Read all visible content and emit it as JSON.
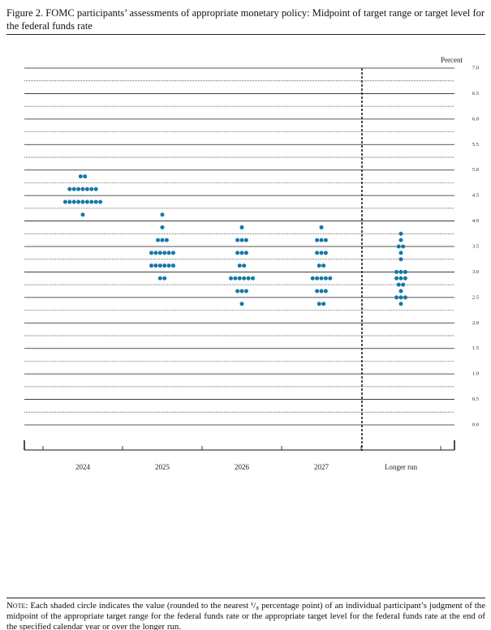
{
  "title": "Figure 2. FOMC participants’ assessments of appropriate monetary policy: Midpoint of target range or target level for the federal funds rate",
  "note_label": "Note:",
  "note": "Each shaded circle indicates the value (rounded to the nearest ¹/₈ percentage point) of an individual participant’s judgment of the midpoint of the appropriate target range for the federal funds rate or the appropriate target level for the federal funds rate at the end of the specified calendar year or over the longer run.",
  "chart_data": {
    "type": "dot",
    "y_label": "Percent",
    "color": "#1478a8",
    "categories": [
      "2024",
      "2025",
      "2026",
      "2027",
      "Longer run"
    ],
    "values": [
      [
        4.875,
        4.875,
        4.625,
        4.625,
        4.625,
        4.625,
        4.625,
        4.625,
        4.625,
        4.375,
        4.375,
        4.375,
        4.375,
        4.375,
        4.375,
        4.375,
        4.375,
        4.375,
        4.125
      ],
      [
        4.125,
        3.875,
        3.625,
        3.625,
        3.625,
        3.375,
        3.375,
        3.375,
        3.375,
        3.375,
        3.375,
        3.125,
        3.125,
        3.125,
        3.125,
        3.125,
        3.125,
        2.875,
        2.875
      ],
      [
        3.875,
        3.625,
        3.625,
        3.625,
        3.375,
        3.375,
        3.375,
        3.125,
        3.125,
        2.875,
        2.875,
        2.875,
        2.875,
        2.875,
        2.875,
        2.625,
        2.625,
        2.625,
        2.375
      ],
      [
        3.875,
        3.625,
        3.625,
        3.625,
        3.375,
        3.375,
        3.375,
        3.125,
        3.125,
        2.875,
        2.875,
        2.875,
        2.875,
        2.875,
        2.625,
        2.625,
        2.625,
        2.375,
        2.375
      ],
      [
        3.75,
        3.625,
        3.5,
        3.5,
        3.375,
        3.25,
        3.0,
        3.0,
        3.0,
        2.875,
        2.875,
        2.875,
        2.75,
        2.75,
        2.625,
        2.5,
        2.5,
        2.5,
        2.375
      ]
    ],
    "ylim": [
      0,
      7
    ],
    "yticks": [
      {
        "value": 0,
        "label": "0.0"
      },
      0.5,
      {
        "value": 1,
        "label": "1.0"
      },
      1.5,
      {
        "value": 2,
        "label": "2.0"
      },
      2.5,
      {
        "value": 3,
        "label": "3.0"
      },
      3.5,
      {
        "value": 4,
        "label": "4.0"
      },
      4.5,
      {
        "value": 5,
        "label": "5.0"
      },
      5.5,
      {
        "value": 6,
        "label": "6.0"
      },
      6.5,
      {
        "value": 7,
        "label": "7.0"
      }
    ],
    "grid": true
  }
}
